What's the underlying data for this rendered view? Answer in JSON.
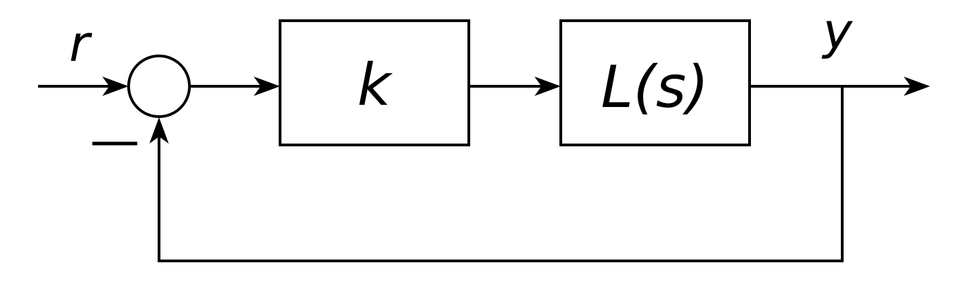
{
  "diagram": {
    "input_signal": "r",
    "output_signal": "y",
    "feedback_sign": "—",
    "blocks": {
      "gain": "k",
      "plant": "L(s)"
    }
  }
}
